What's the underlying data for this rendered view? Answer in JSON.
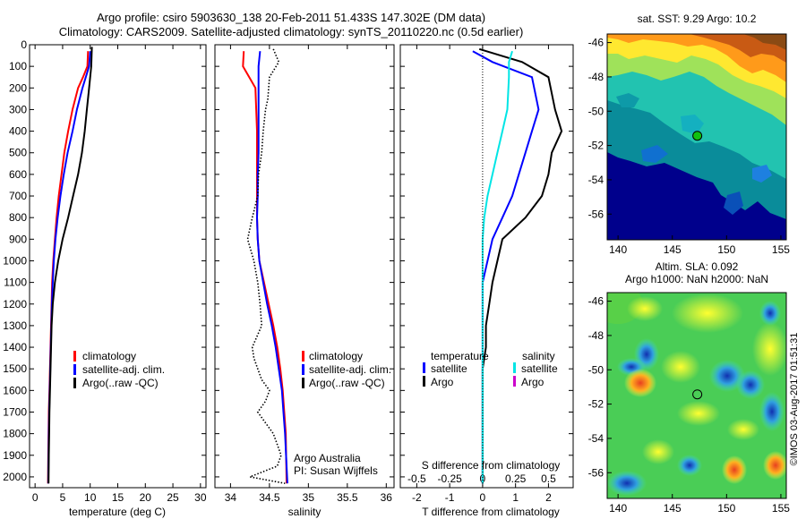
{
  "header": {
    "line1": "Argo profile: csiro 5903630_138 20-Feb-2011 51.433S 147.302E (DM data)",
    "line2": "Climatology: CARS2009. Satellite-adjusted climatology: synTS_20110220.nc (0.5d earlier)"
  },
  "side_text": "©IMOS 03-Aug-2017 01:51:31",
  "colors": {
    "climatology": "#ff0000",
    "satellite_adj": "#0000ff",
    "argo": "#000000",
    "salinity_satellite": "#00e5e5",
    "salinity_argo": "#cc00cc",
    "marker": "#000000"
  },
  "chart_data": [
    {
      "id": "temperature",
      "type": "line",
      "xlabel": "temperature (deg C)",
      "ylabel": "",
      "xlim": [
        -1,
        31
      ],
      "ylim": [
        2050,
        0
      ],
      "xticks": [
        0,
        5,
        10,
        15,
        20,
        25,
        30
      ],
      "yticks": [
        0,
        100,
        200,
        300,
        400,
        500,
        600,
        700,
        800,
        900,
        1000,
        1100,
        1200,
        1300,
        1400,
        1500,
        1600,
        1700,
        1800,
        1900,
        2000
      ],
      "legend": {
        "placement": "lower-right",
        "entries": [
          "climatology",
          "satellite-adj. clim.",
          "Argo(..raw -QC)"
        ]
      },
      "series": [
        {
          "name": "climatology",
          "color": "red",
          "x": [
            9.6,
            9.5,
            8.7,
            7.8,
            6.8,
            6.0,
            5.3,
            4.8,
            4.3,
            3.9,
            3.6,
            3.3,
            3.1,
            3.0,
            2.9,
            2.8,
            2.7,
            2.6,
            2.5,
            2.45,
            2.4,
            2.35
          ],
          "y": [
            30,
            100,
            150,
            200,
            300,
            400,
            500,
            600,
            700,
            800,
            900,
            1000,
            1100,
            1200,
            1300,
            1400,
            1500,
            1600,
            1700,
            1800,
            1900,
            2030
          ]
        },
        {
          "name": "satellite-adj. clim.",
          "color": "blue",
          "x": [
            10.0,
            9.8,
            9.2,
            8.6,
            7.6,
            6.8,
            5.9,
            5.2,
            4.6,
            4.1,
            3.7,
            3.4,
            3.2,
            3.05,
            2.95,
            2.85,
            2.75,
            2.65,
            2.55,
            2.5,
            2.45,
            2.4
          ],
          "y": [
            30,
            100,
            150,
            200,
            300,
            400,
            500,
            600,
            700,
            800,
            900,
            1000,
            1100,
            1200,
            1300,
            1400,
            1500,
            1600,
            1700,
            1800,
            1900,
            2030
          ]
        },
        {
          "name": "Argo(..raw -QC)",
          "color": "black",
          "x": [
            10.3,
            10.2,
            10.0,
            9.8,
            9.4,
            9.0,
            8.5,
            7.8,
            6.9,
            6.0,
            5.0,
            4.2,
            3.6,
            3.2,
            3.0,
            2.9,
            2.8,
            2.7,
            2.6,
            2.55,
            2.5,
            2.45
          ],
          "y": [
            10,
            100,
            150,
            200,
            300,
            400,
            500,
            600,
            700,
            800,
            900,
            1000,
            1100,
            1200,
            1300,
            1400,
            1500,
            1600,
            1700,
            1800,
            1900,
            2030
          ]
        }
      ]
    },
    {
      "id": "salinity",
      "type": "line",
      "xlabel": "salinity",
      "ylabel": "",
      "xlim": [
        33.8,
        36.1
      ],
      "ylim": [
        2050,
        0
      ],
      "xticks": [
        34,
        34.5,
        35,
        35.5,
        36
      ],
      "legend": {
        "placement": "lower-right",
        "entries": [
          "climatology",
          "satellite-adj. clim.",
          "Argo(..raw -QC)"
        ]
      },
      "annotation": [
        "Argo Australia",
        "PI: Susan Wijffels"
      ],
      "series": [
        {
          "name": "climatology",
          "color": "red",
          "x": [
            34.17,
            34.16,
            34.24,
            34.32,
            34.33,
            34.34,
            34.34,
            34.34,
            34.34,
            34.34,
            34.35,
            34.37,
            34.43,
            34.49,
            34.55,
            34.6,
            34.64,
            34.67,
            34.69,
            34.71,
            34.72
          ],
          "y": [
            30,
            100,
            150,
            200,
            300,
            400,
            500,
            600,
            700,
            800,
            900,
            1000,
            1100,
            1200,
            1300,
            1400,
            1500,
            1600,
            1700,
            1800,
            2030
          ]
        },
        {
          "name": "satellite-adj. clim.",
          "color": "blue",
          "x": [
            34.38,
            34.36,
            34.36,
            34.36,
            34.36,
            34.36,
            34.36,
            34.35,
            34.35,
            34.34,
            34.35,
            34.37,
            34.42,
            34.47,
            34.53,
            34.58,
            34.62,
            34.66,
            34.68,
            34.7,
            34.73
          ],
          "y": [
            30,
            100,
            150,
            200,
            300,
            400,
            500,
            600,
            700,
            800,
            900,
            1000,
            1100,
            1200,
            1300,
            1400,
            1500,
            1600,
            1700,
            1800,
            2030
          ]
        },
        {
          "name": "Argo(..raw -QC)",
          "color": "black",
          "style": "dotted",
          "x": [
            34.55,
            34.62,
            34.5,
            34.48,
            34.45,
            34.42,
            34.4,
            34.36,
            34.35,
            34.28,
            34.22,
            34.3,
            34.35,
            34.38,
            34.4,
            34.28,
            34.3,
            34.35,
            34.4,
            34.5,
            34.45,
            34.35,
            34.45,
            34.55,
            34.6,
            34.65,
            34.6,
            34.25,
            34.7
          ],
          "y": [
            20,
            80,
            150,
            250,
            300,
            400,
            500,
            600,
            700,
            800,
            900,
            1000,
            1100,
            1200,
            1300,
            1400,
            1450,
            1500,
            1550,
            1600,
            1650,
            1700,
            1750,
            1800,
            1850,
            1900,
            1950,
            2000,
            2030
          ]
        }
      ]
    },
    {
      "id": "difference",
      "type": "line",
      "xlabel": "T difference from climatology",
      "xlabel_top": "S difference from climatology",
      "xlim": [
        -2.5,
        2.75
      ],
      "xticks": [
        -2,
        -1,
        0,
        1,
        2
      ],
      "xticks_top": [
        -0.5,
        -0.25,
        0,
        0.25,
        0.5
      ],
      "legend": {
        "placement": "lower-center",
        "temperature_title": "temperature",
        "salinity_title": "salinity",
        "entries": [
          "satellite",
          "Argo",
          "satellite",
          "Argo"
        ]
      },
      "series": [
        {
          "name": "temperature satellite",
          "color": "blue",
          "x": [
            -0.3,
            0.3,
            1.5,
            1.7,
            1.5,
            1.3,
            1.1,
            0.9,
            0.6,
            0.3,
            0.0,
            0.0,
            0.0,
            0.0,
            0.0,
            0.0,
            0.0,
            0.0,
            0.0,
            0.0
          ],
          "y": [
            30,
            80,
            150,
            300,
            400,
            500,
            600,
            700,
            800,
            900,
            1100,
            1200,
            1300,
            1400,
            1500,
            1600,
            1700,
            1800,
            1900,
            2030
          ]
        },
        {
          "name": "temperature Argo",
          "color": "black",
          "x": [
            -0.1,
            1.2,
            2.0,
            2.2,
            2.4,
            2.1,
            2.0,
            1.8,
            1.3,
            0.6,
            0.3,
            0.2,
            0.1,
            0.1,
            0.0,
            0.0,
            0.0,
            0.0,
            0.0,
            0.0
          ],
          "y": [
            20,
            80,
            150,
            300,
            400,
            500,
            600,
            700,
            800,
            900,
            1100,
            1200,
            1300,
            1400,
            1500,
            1600,
            1700,
            1800,
            1900,
            2030
          ]
        },
        {
          "name": "salinity satellite",
          "color": "cyan",
          "x": [
            0.9,
            0.8,
            0.8,
            0.75,
            0.6,
            0.45,
            0.3,
            0.15,
            0.05,
            0.0,
            0.0,
            0.0,
            0.0,
            0.0,
            0.0,
            0.0,
            0.0,
            0.0,
            0.0,
            0.0
          ],
          "y": [
            30,
            80,
            150,
            300,
            400,
            500,
            600,
            700,
            800,
            900,
            1100,
            1200,
            1300,
            1400,
            1500,
            1600,
            1700,
            1800,
            1900,
            2030
          ]
        }
      ]
    },
    {
      "id": "sst_map",
      "type": "heatmap",
      "title": "sat. SST: 9.29  Argo: 10.2",
      "xlim": [
        139,
        155.5
      ],
      "ylim": [
        -57.5,
        -45.5
      ],
      "xticks": [
        140,
        145,
        150,
        155
      ],
      "yticks": [
        -46,
        -48,
        -50,
        -52,
        -54,
        -56
      ],
      "marker": {
        "lon": 147.302,
        "lat": -51.433
      }
    },
    {
      "id": "sla_map",
      "type": "heatmap",
      "title": "Altim. SLA: 0.092",
      "subtitle": "Argo h1000: NaN h2000: NaN",
      "xlim": [
        139,
        155.5
      ],
      "ylim": [
        -57.5,
        -45.5
      ],
      "xticks": [
        140,
        145,
        150,
        155
      ],
      "yticks": [
        -46,
        -48,
        -50,
        -52,
        -54,
        -56
      ],
      "marker": {
        "lon": 147.302,
        "lat": -51.433
      }
    }
  ]
}
